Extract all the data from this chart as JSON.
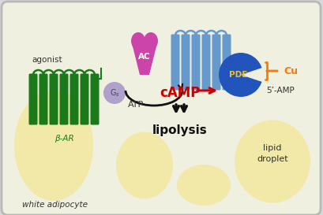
{
  "bg_color": "#d8d8d8",
  "cell_color": "#f0f0e0",
  "cell_border_color": "#b8b8b8",
  "lipid_color": "#f2e8a8",
  "bar_green": "#1a7a1a",
  "bar_blue": "#6699cc",
  "ac_color": "#cc44aa",
  "gs_color": "#b0a0cc",
  "pde_color": "#2255bb",
  "pde_text_color": "#f0c020",
  "cu_color": "#ff7700",
  "camp_color": "#cc0000",
  "red_arrow_color": "#cc0000",
  "black_color": "#111111",
  "text_color": "#333333",
  "white_adipocyte_text": "white adipocyte",
  "beta_ar_label": "β-AR",
  "agonist_label": "agonist",
  "atp_label": "ATP",
  "camp_label": "cAMP",
  "amp_label": "5’-AMP",
  "lipolysis_label": "lipolysis",
  "lipid_droplet_label": "lipid\ndroplet",
  "ac_label": "AC",
  "gs_label": "Gₛ",
  "pde_label": "PDE",
  "cu_label": "Cu"
}
